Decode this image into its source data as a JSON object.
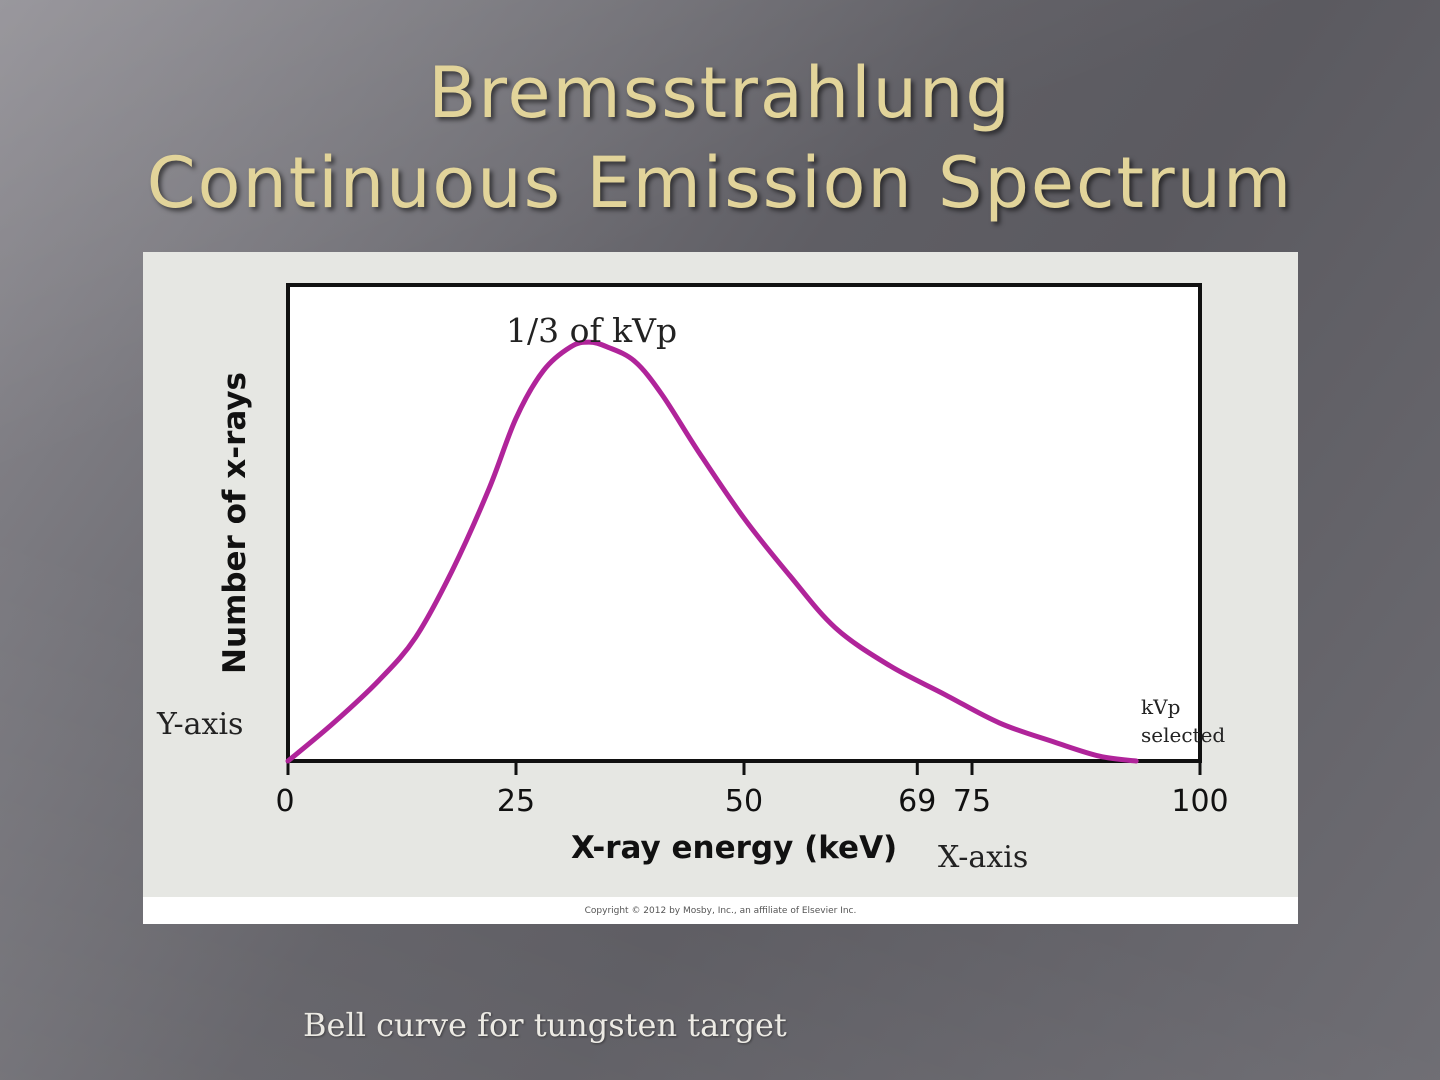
{
  "slide": {
    "title_line1": "Bremsstrahlung",
    "title_line2": "Continuous Emission Spectrum",
    "caption": "Bell curve for tungsten target",
    "copyright": "Copyright © 2012 by Mosby, Inc., an affiliate of Elsevier Inc."
  },
  "chart_data": {
    "type": "line",
    "xlabel": "X-ray energy (keV)",
    "ylabel": "Number of x-rays",
    "xlim": [
      0,
      100
    ],
    "ylim": [
      0,
      100
    ],
    "x_ticks": [
      0,
      25,
      50,
      69,
      75,
      100
    ],
    "y_ticks_shown": false,
    "grid": false,
    "line_color": "#b0249a",
    "series": [
      {
        "x": [
          0,
          5,
          10,
          14,
          18,
          22,
          25,
          28,
          31,
          33,
          35,
          38,
          41,
          45,
          50,
          55,
          60,
          66,
          72,
          78,
          84,
          89,
          93
        ],
        "y": [
          0,
          8,
          17,
          26,
          40,
          57,
          72,
          82,
          87,
          88,
          87,
          84,
          77,
          65,
          51,
          39,
          28,
          20,
          14,
          8,
          4,
          1,
          0
        ]
      }
    ],
    "annotations": {
      "peak": "1/3 of kVp",
      "y_axis": "Y-axis",
      "x_axis": "X-axis",
      "kvp_line1": "kVp",
      "kvp_line2": "selected"
    }
  }
}
